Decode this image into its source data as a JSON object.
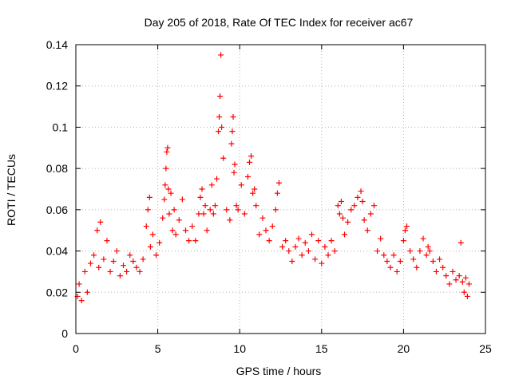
{
  "chart_data": {
    "type": "scatter",
    "title": "Day 205 of 2018, Rate Of TEC Index for receiver ac67",
    "xlabel": "GPS time / hours",
    "ylabel": "ROTI / TECUs",
    "xlim": [
      0,
      25
    ],
    "ylim": [
      0,
      0.14
    ],
    "xticks": [
      "0",
      "5",
      "10",
      "15",
      "20",
      "25"
    ],
    "yticks": [
      "0",
      "0.02",
      "0.04",
      "0.06",
      "0.08",
      "0.1",
      "0.12",
      "0.14"
    ],
    "grid": true,
    "marker": "+",
    "color": "#ff0000",
    "series": [
      {
        "name": "ROTI",
        "x": [
          0.1,
          0.2,
          0.35,
          0.55,
          0.7,
          0.9,
          1.1,
          1.3,
          1.4,
          1.5,
          1.7,
          1.9,
          2.1,
          2.3,
          2.5,
          2.7,
          2.9,
          3.1,
          3.3,
          3.5,
          3.7,
          3.9,
          4.1,
          4.3,
          4.4,
          4.5,
          4.55,
          4.7,
          4.9,
          5.1,
          5.3,
          5.4,
          5.45,
          5.5,
          5.55,
          5.6,
          5.65,
          5.7,
          5.8,
          5.9,
          6.0,
          6.1,
          6.3,
          6.5,
          6.7,
          6.9,
          7.1,
          7.3,
          7.5,
          7.6,
          7.7,
          7.8,
          7.9,
          8.0,
          8.2,
          8.3,
          8.4,
          8.5,
          8.6,
          8.7,
          8.75,
          8.8,
          8.85,
          8.9,
          9.0,
          9.2,
          9.4,
          9.5,
          9.55,
          9.6,
          9.65,
          9.7,
          9.8,
          9.9,
          10.1,
          10.3,
          10.5,
          10.6,
          10.7,
          10.8,
          10.9,
          11.0,
          11.2,
          11.4,
          11.6,
          11.8,
          12.0,
          12.2,
          12.3,
          12.4,
          12.6,
          12.8,
          13.0,
          13.2,
          13.4,
          13.6,
          13.8,
          14.0,
          14.2,
          14.4,
          14.6,
          14.8,
          15.0,
          15.2,
          15.4,
          15.6,
          15.8,
          16.0,
          16.1,
          16.2,
          16.3,
          16.4,
          16.6,
          16.8,
          17.0,
          17.2,
          17.4,
          17.5,
          17.6,
          17.8,
          18.0,
          18.2,
          18.4,
          18.6,
          18.8,
          19.0,
          19.2,
          19.4,
          19.6,
          19.8,
          20.0,
          20.1,
          20.2,
          20.4,
          20.6,
          20.8,
          21.0,
          21.2,
          21.4,
          21.5,
          21.6,
          21.8,
          22.0,
          22.2,
          22.4,
          22.6,
          22.8,
          23.0,
          23.2,
          23.4,
          23.5,
          23.6,
          23.7,
          23.8,
          23.9,
          24.0
        ],
        "y": [
          0.018,
          0.024,
          0.016,
          0.03,
          0.02,
          0.034,
          0.038,
          0.05,
          0.032,
          0.054,
          0.036,
          0.045,
          0.03,
          0.035,
          0.04,
          0.028,
          0.033,
          0.03,
          0.038,
          0.035,
          0.032,
          0.03,
          0.036,
          0.052,
          0.06,
          0.066,
          0.042,
          0.048,
          0.038,
          0.044,
          0.056,
          0.065,
          0.072,
          0.08,
          0.088,
          0.09,
          0.07,
          0.058,
          0.068,
          0.05,
          0.06,
          0.048,
          0.055,
          0.065,
          0.05,
          0.045,
          0.052,
          0.045,
          0.058,
          0.066,
          0.07,
          0.058,
          0.062,
          0.05,
          0.06,
          0.072,
          0.058,
          0.062,
          0.075,
          0.098,
          0.105,
          0.115,
          0.135,
          0.1,
          0.085,
          0.06,
          0.055,
          0.092,
          0.098,
          0.105,
          0.078,
          0.082,
          0.062,
          0.06,
          0.072,
          0.058,
          0.076,
          0.083,
          0.086,
          0.068,
          0.07,
          0.062,
          0.048,
          0.056,
          0.05,
          0.045,
          0.052,
          0.06,
          0.068,
          0.073,
          0.042,
          0.045,
          0.04,
          0.035,
          0.042,
          0.046,
          0.038,
          0.044,
          0.04,
          0.048,
          0.036,
          0.045,
          0.034,
          0.042,
          0.038,
          0.045,
          0.04,
          0.062,
          0.058,
          0.064,
          0.056,
          0.048,
          0.054,
          0.06,
          0.062,
          0.066,
          0.069,
          0.064,
          0.055,
          0.05,
          0.058,
          0.062,
          0.04,
          0.046,
          0.038,
          0.035,
          0.032,
          0.038,
          0.03,
          0.035,
          0.045,
          0.05,
          0.052,
          0.04,
          0.036,
          0.032,
          0.04,
          0.046,
          0.038,
          0.042,
          0.04,
          0.035,
          0.03,
          0.036,
          0.032,
          0.028,
          0.024,
          0.03,
          0.026,
          0.028,
          0.044,
          0.025,
          0.02,
          0.027,
          0.018,
          0.024
        ]
      }
    ]
  }
}
